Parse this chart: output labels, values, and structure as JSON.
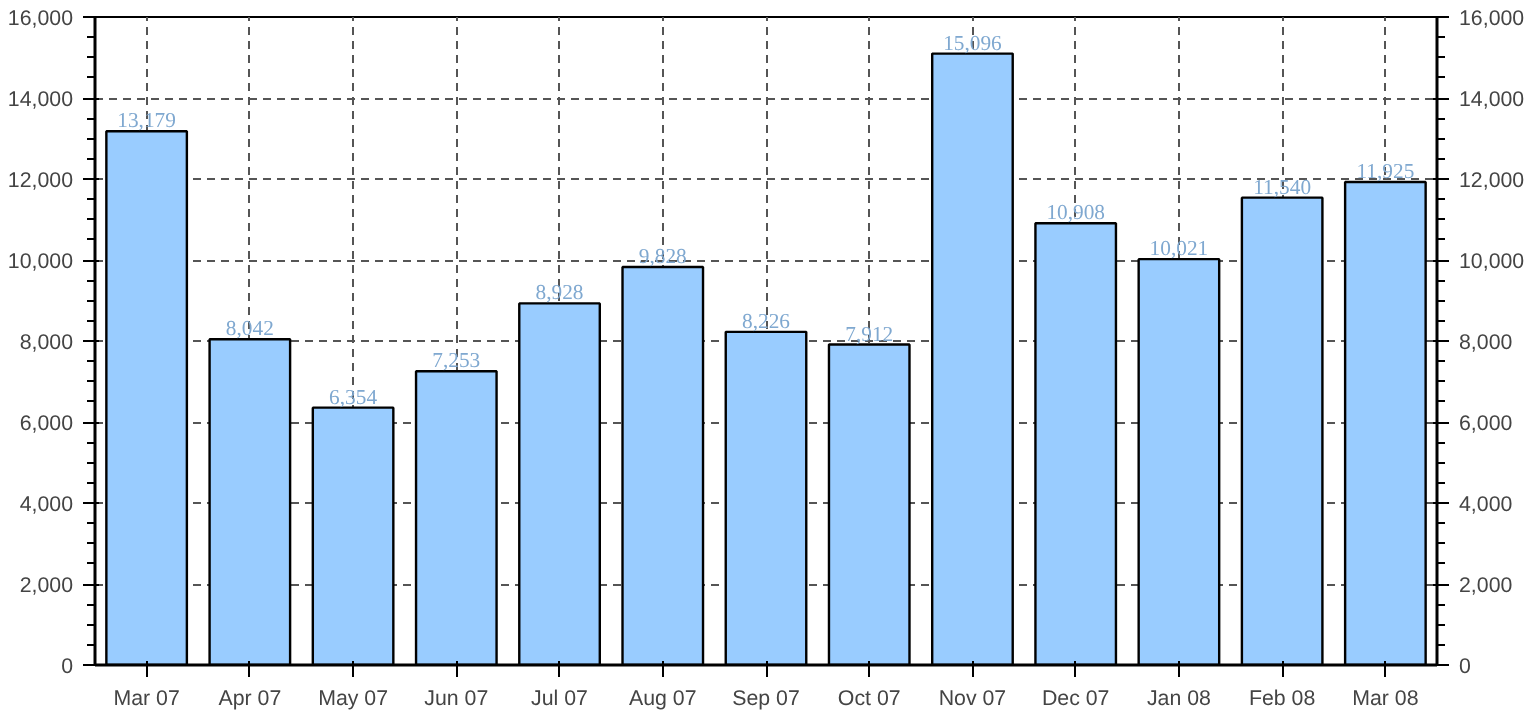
{
  "chart_data": {
    "type": "bar",
    "categories": [
      "Mar 07",
      "Apr 07",
      "May 07",
      "Jun 07",
      "Jul 07",
      "Aug 07",
      "Sep 07",
      "Oct 07",
      "Nov 07",
      "Dec 07",
      "Jan 08",
      "Feb 08",
      "Mar 08"
    ],
    "values": [
      13179,
      8042,
      6354,
      7253,
      8928,
      9828,
      8226,
      7912,
      15096,
      10908,
      10021,
      11540,
      11925
    ],
    "value_labels": [
      "13,179",
      "8,042",
      "6,354",
      "7,253",
      "8,928",
      "9,828",
      "8,226",
      "7,912",
      "15,096",
      "10,908",
      "10,021",
      "11,540",
      "11,925"
    ],
    "color": "#99ccff",
    "ylim": [
      0,
      16000
    ],
    "yticks": [
      {
        "value": 0,
        "label": "0"
      },
      {
        "value": 2000,
        "label": "2,000"
      },
      {
        "value": 4000,
        "label": "4,000"
      },
      {
        "value": 6000,
        "label": "6,000"
      },
      {
        "value": 8000,
        "label": "8,000"
      },
      {
        "value": 10000,
        "label": "10,000"
      },
      {
        "value": 12000,
        "label": "12,000"
      },
      {
        "value": 14000,
        "label": "14,000"
      },
      {
        "value": 16000,
        "label": "16,000"
      }
    ],
    "y2lim": [
      0,
      16000
    ],
    "y2ticks": [
      {
        "value": 0,
        "label": "0"
      },
      {
        "value": 2000,
        "label": "2,000"
      },
      {
        "value": 4000,
        "label": "4,000"
      },
      {
        "value": 6000,
        "label": "6,000"
      },
      {
        "value": 8000,
        "label": "8,000"
      },
      {
        "value": 10000,
        "label": "10,000"
      },
      {
        "value": 12000,
        "label": "12,000"
      },
      {
        "value": 14000,
        "label": "14,000"
      },
      {
        "value": 16000,
        "label": "16,000"
      }
    ],
    "grid": true
  }
}
